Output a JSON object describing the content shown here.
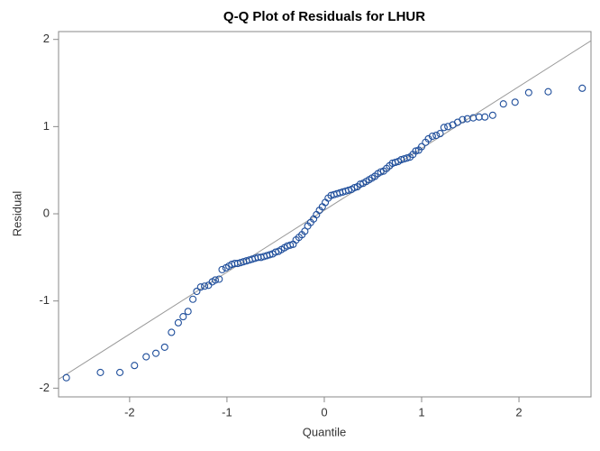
{
  "chart_data": {
    "type": "scatter",
    "title": "Q-Q Plot of Residuals for LHUR",
    "x_label": "Quantile",
    "y_label": "Residual",
    "xlim": [
      -2.73,
      2.74
    ],
    "ylim": [
      -2.1,
      2.09
    ],
    "xticks": [
      -2,
      -1,
      0,
      1,
      2
    ],
    "yticks": [
      -2,
      -1,
      0,
      1,
      2
    ],
    "reference_line": {
      "intercept": 0.04,
      "slope": 0.71,
      "color": "#999999"
    },
    "series": [
      {
        "color": "#1f4e9b",
        "x": [
          -2.65,
          -2.3,
          -2.1,
          -1.95,
          -1.83,
          -1.73,
          -1.64,
          -1.57,
          -1.5,
          -1.45,
          -1.4,
          -1.35,
          -1.31,
          -1.27,
          -1.23,
          -1.19,
          -1.15,
          -1.12,
          -1.08,
          -1.05,
          -1.01,
          -0.98,
          -0.95,
          -0.92,
          -0.89,
          -0.86,
          -0.83,
          -0.8,
          -0.77,
          -0.74,
          -0.71,
          -0.68,
          -0.65,
          -0.62,
          -0.59,
          -0.56,
          -0.53,
          -0.5,
          -0.47,
          -0.44,
          -0.41,
          -0.38,
          -0.35,
          -0.32,
          -0.29,
          -0.26,
          -0.23,
          -0.2,
          -0.17,
          -0.14,
          -0.11,
          -0.08,
          -0.05,
          -0.02,
          0.01,
          0.04,
          0.07,
          0.1,
          0.13,
          0.16,
          0.19,
          0.22,
          0.25,
          0.28,
          0.31,
          0.34,
          0.37,
          0.4,
          0.43,
          0.46,
          0.49,
          0.52,
          0.55,
          0.58,
          0.61,
          0.64,
          0.67,
          0.7,
          0.73,
          0.76,
          0.79,
          0.82,
          0.85,
          0.88,
          0.91,
          0.94,
          0.97,
          1.0,
          1.04,
          1.07,
          1.11,
          1.15,
          1.19,
          1.23,
          1.27,
          1.32,
          1.37,
          1.42,
          1.47,
          1.53,
          1.59,
          1.65,
          1.73,
          1.84,
          1.96,
          2.1,
          2.3,
          2.65
        ],
        "y": [
          -1.88,
          -1.82,
          -1.82,
          -1.74,
          -1.64,
          -1.6,
          -1.53,
          -1.36,
          -1.25,
          -1.18,
          -1.12,
          -0.98,
          -0.89,
          -0.84,
          -0.83,
          -0.82,
          -0.78,
          -0.76,
          -0.75,
          -0.64,
          -0.62,
          -0.6,
          -0.58,
          -0.57,
          -0.57,
          -0.56,
          -0.55,
          -0.54,
          -0.53,
          -0.52,
          -0.51,
          -0.5,
          -0.5,
          -0.49,
          -0.48,
          -0.47,
          -0.46,
          -0.44,
          -0.43,
          -0.41,
          -0.39,
          -0.37,
          -0.36,
          -0.35,
          -0.3,
          -0.27,
          -0.24,
          -0.2,
          -0.14,
          -0.1,
          -0.06,
          -0.01,
          0.04,
          0.08,
          0.13,
          0.18,
          0.21,
          0.22,
          0.23,
          0.24,
          0.25,
          0.26,
          0.27,
          0.28,
          0.3,
          0.31,
          0.34,
          0.35,
          0.37,
          0.39,
          0.41,
          0.43,
          0.46,
          0.48,
          0.49,
          0.52,
          0.55,
          0.58,
          0.59,
          0.6,
          0.62,
          0.63,
          0.64,
          0.65,
          0.68,
          0.72,
          0.73,
          0.77,
          0.82,
          0.86,
          0.89,
          0.9,
          0.92,
          0.99,
          1.0,
          1.02,
          1.05,
          1.08,
          1.09,
          1.1,
          1.11,
          1.11,
          1.13,
          1.26,
          1.28,
          1.39,
          1.4,
          1.44
        ]
      }
    ]
  }
}
